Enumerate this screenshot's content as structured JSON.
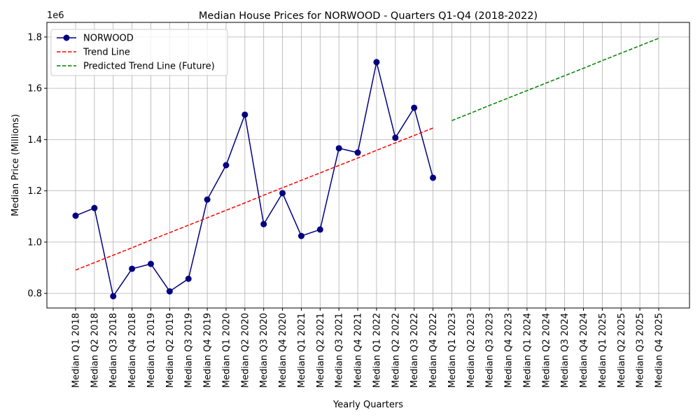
{
  "chart_data": {
    "type": "line",
    "title": "Median House Prices for NORWOOD - Quarters Q1-Q4 (2018-2022)",
    "x_label": "Yearly Quarters",
    "y_label": "Median Price (Millions)",
    "y_offset_label": "1e6",
    "categories": [
      "Median Q1 2018",
      "Median Q2 2018",
      "Median Q3 2018",
      "Median Q4 2018",
      "Median Q1 2019",
      "Median Q2 2019",
      "Median Q3 2019",
      "Median Q4 2019",
      "Median Q1 2020",
      "Median Q2 2020",
      "Median Q3 2020",
      "Median Q4 2020",
      "Median Q1 2021",
      "Median Q2 2021",
      "Median Q3 2021",
      "Median Q4 2021",
      "Median Q1 2022",
      "Median Q2 2022",
      "Median Q3 2022",
      "Median Q4 2022",
      "Median Q1 2023",
      "Median Q2 2023",
      "Median Q3 2023",
      "Median Q4 2023",
      "Median Q1 2024",
      "Median Q2 2024",
      "Median Q3 2024",
      "Median Q4 2024",
      "Median Q1 2025",
      "Median Q2 2025",
      "Median Q3 2025",
      "Median Q4 2025"
    ],
    "series": [
      {
        "name": "NORWOOD",
        "color": "#000080",
        "dashed": false,
        "markers": true,
        "values": [
          1.103,
          1.133,
          0.789,
          0.896,
          0.915,
          0.808,
          0.857,
          1.166,
          1.3,
          1.497,
          1.07,
          1.191,
          1.024,
          1.049,
          1.366,
          1.349,
          1.702,
          1.407,
          1.524,
          1.251,
          null,
          null,
          null,
          null,
          null,
          null,
          null,
          null,
          null,
          null,
          null,
          null
        ]
      },
      {
        "name": "Trend Line",
        "color": "#ff0000",
        "dashed": true,
        "markers": false,
        "values": [
          0.891,
          0.92,
          0.949,
          0.978,
          1.008,
          1.037,
          1.066,
          1.095,
          1.124,
          1.153,
          1.183,
          1.212,
          1.241,
          1.27,
          1.299,
          1.328,
          1.358,
          1.387,
          1.416,
          1.445,
          null,
          null,
          null,
          null,
          null,
          null,
          null,
          null,
          null,
          null,
          null,
          null
        ]
      },
      {
        "name": "Predicted Trend Line (Future)",
        "color": "#008000",
        "dashed": true,
        "markers": false,
        "values": [
          null,
          null,
          null,
          null,
          null,
          null,
          null,
          null,
          null,
          null,
          null,
          null,
          null,
          null,
          null,
          null,
          null,
          null,
          null,
          null,
          1.474,
          1.503,
          1.533,
          1.562,
          1.591,
          1.62,
          1.649,
          1.678,
          1.708,
          1.737,
          1.766,
          1.795
        ]
      }
    ],
    "ylim": [
      0.743,
      1.857
    ],
    "yticks": [
      0.8,
      {
        "value": 1,
        "label": "1.0"
      },
      1.2,
      1.4,
      1.6,
      1.8
    ],
    "grid": true,
    "legend": "upper left"
  }
}
